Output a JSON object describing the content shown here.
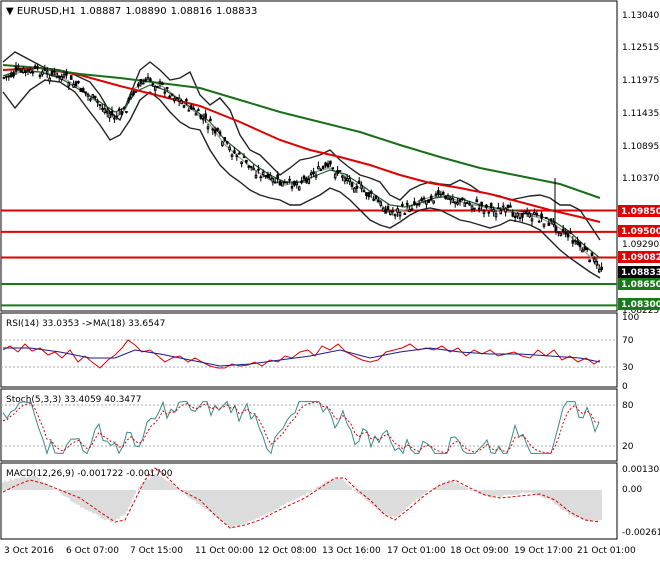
{
  "header": {
    "symbol": "EURUSD,H1",
    "open": "1.08887",
    "high": "1.08890",
    "low": "1.08816",
    "close": "1.08833"
  },
  "price_axis": [
    "1.13040",
    "1.12515",
    "1.11975",
    "1.11435",
    "1.10895",
    "1.10370",
    "1.09290",
    "1.08225"
  ],
  "levels": [
    {
      "label": "1.09850",
      "value": 1.0985,
      "color": "#e00000"
    },
    {
      "label": "1.09500",
      "value": 1.095,
      "color": "#e00000"
    },
    {
      "label": "1.09082",
      "value": 1.09082,
      "color": "#e00000"
    },
    {
      "label": "1.08650",
      "value": 1.0865,
      "color": "#1a7a1a"
    },
    {
      "label": "1.08300",
      "value": 1.083,
      "color": "#1a7a1a"
    }
  ],
  "current_price": "1.08833",
  "rsi": {
    "label": "RSI(14) 33.0353 ->MA(18) 33.6547",
    "axis": [
      "100",
      "70",
      "30",
      "0"
    ],
    "levels": [
      70,
      30
    ]
  },
  "stoch": {
    "label": "Stoch(5,3,3) 33.4059 40.3477",
    "axis": [
      "80",
      "20"
    ],
    "levels": [
      80,
      20
    ]
  },
  "macd": {
    "label": "MACD(12,26,9) -0.001722 -0.001700",
    "axis": [
      "0.001301",
      "0.00",
      "-0.002614"
    ]
  },
  "time_axis": [
    "3 Oct 2016",
    "6 Oct 07:00",
    "7 Oct 15:00",
    "11 Oct 00:00",
    "12 Oct 08:00",
    "13 Oct 16:00",
    "17 Oct 01:00",
    "18 Oct 09:00",
    "19 Oct 17:00",
    "21 Oct 01:00"
  ],
  "chart_data": {
    "type": "line",
    "title": "EURUSD,H1",
    "x": [
      "3 Oct 2016",
      "6 Oct 07:00",
      "7 Oct 15:00",
      "11 Oct 00:00",
      "12 Oct 08:00",
      "13 Oct 16:00",
      "17 Oct 01:00",
      "18 Oct 09:00",
      "19 Oct 17:00",
      "21 Oct 01:00"
    ],
    "ylim": [
      1.0822,
      1.1315
    ],
    "series": [
      {
        "values": [
          1.122,
          1.1205,
          1.118,
          1.1125,
          1.102,
          1.104,
          1.0995,
          1.0995,
          1.0975,
          1.089
        ]
      },
      {
        "values": [
          1.1215,
          1.121,
          1.119,
          1.115,
          1.1075,
          1.106,
          1.103,
          1.1005,
          1.0985,
          1.0955
        ]
      },
      {
        "values": [
          1.1205,
          1.12,
          1.1185,
          1.1165,
          1.112,
          1.109,
          1.1065,
          1.1045,
          1.103,
          1.101
        ]
      }
    ],
    "hlines": [
      1.0985,
      1.095,
      1.09082,
      1.0865,
      1.083
    ]
  }
}
